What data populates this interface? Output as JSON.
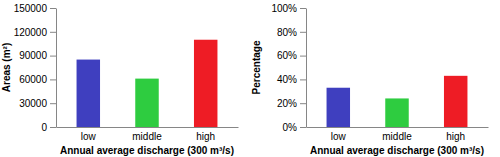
{
  "chart_data": [
    {
      "type": "bar",
      "categories": [
        "low",
        "middle",
        "high"
      ],
      "values": [
        85000,
        61000,
        110000
      ],
      "colors": [
        "#3f3fbf",
        "#2ecc40",
        "#ee1c25"
      ],
      "xlabel": "Annual average discharge (300 m³/s)",
      "ylabel": "Areas (m²)",
      "ylim": [
        0,
        150000
      ],
      "yticks": [
        0,
        30000,
        60000,
        90000,
        120000,
        150000
      ],
      "grid": false
    },
    {
      "type": "bar",
      "categories": [
        "low",
        "middle",
        "high"
      ],
      "values": [
        33,
        24,
        43
      ],
      "colors": [
        "#3f3fbf",
        "#2ecc40",
        "#ee1c25"
      ],
      "xlabel": "Annual average discharge (300 m³/s)",
      "ylabel": "Percentage",
      "ylim": [
        0,
        100
      ],
      "yticks": [
        {
          "value": 0,
          "label": "0%"
        },
        {
          "value": 20,
          "label": "20%"
        },
        {
          "value": 40,
          "label": "40%"
        },
        {
          "value": 60,
          "label": "60%"
        },
        {
          "value": 80,
          "label": "80%"
        },
        {
          "value": 100,
          "label": "100%"
        }
      ],
      "grid": false
    }
  ]
}
